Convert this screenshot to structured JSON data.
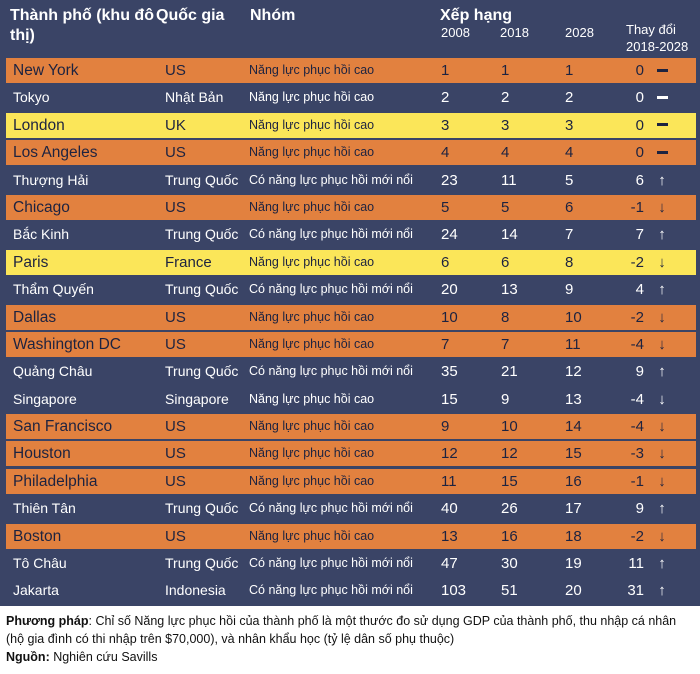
{
  "header": {
    "city": "Thành phố (khu đô thị)",
    "country": "Quốc gia",
    "group": "Nhóm",
    "rank": "Xếp hạng",
    "year1": "2008",
    "year2": "2018",
    "year3": "2028",
    "change_line1": "Thay đổi",
    "change_line2": "2018-2028"
  },
  "rows": [
    {
      "city": "New York",
      "country": "US",
      "group": "Năng lực phục hồi cao",
      "y2008": "1",
      "y2018": "1",
      "y2028": "1",
      "change": "0",
      "trend": "flat",
      "color": "orange"
    },
    {
      "city": "Tokyo",
      "country": "Nhật Bản",
      "group": "Năng lực phục hồi cao",
      "y2008": "2",
      "y2018": "2",
      "y2028": "2",
      "change": "0",
      "trend": "flat",
      "color": "navy"
    },
    {
      "city": "London",
      "country": "UK",
      "group": "Năng lực phục hồi cao",
      "y2008": "3",
      "y2018": "3",
      "y2028": "3",
      "change": "0",
      "trend": "flat",
      "color": "yellow"
    },
    {
      "city": "Los Angeles",
      "country": "US",
      "group": "Năng lực phục hồi cao",
      "y2008": "4",
      "y2018": "4",
      "y2028": "4",
      "change": "0",
      "trend": "flat",
      "color": "orange"
    },
    {
      "city": "Thượng Hải",
      "country": "Trung Quốc",
      "group": "Có năng lực phục hồi mới nổi",
      "y2008": "23",
      "y2018": "11",
      "y2028": "5",
      "change": "6",
      "trend": "up",
      "color": "navy"
    },
    {
      "city": "Chicago",
      "country": "US",
      "group": "Năng lực phục hồi cao",
      "y2008": "5",
      "y2018": "5",
      "y2028": "6",
      "change": "-1",
      "trend": "down",
      "color": "orange"
    },
    {
      "city": "Bắc Kinh",
      "country": "Trung Quốc",
      "group": "Có năng lực phục hồi mới nổi",
      "y2008": "24",
      "y2018": "14",
      "y2028": "7",
      "change": "7",
      "trend": "up",
      "color": "navy"
    },
    {
      "city": "Paris",
      "country": "France",
      "group": "Năng lực phục hồi cao",
      "y2008": "6",
      "y2018": "6",
      "y2028": "8",
      "change": "-2",
      "trend": "down",
      "color": "yellow"
    },
    {
      "city": "Thẩm Quyến",
      "country": "Trung Quốc",
      "group": "Có năng lực phục hồi mới nổi",
      "y2008": "20",
      "y2018": "13",
      "y2028": "9",
      "change": "4",
      "trend": "up",
      "color": "navy"
    },
    {
      "city": "Dallas",
      "country": "US",
      "group": "Năng lực phục hồi cao",
      "y2008": "10",
      "y2018": "8",
      "y2028": "10",
      "change": "-2",
      "trend": "down",
      "color": "orange"
    },
    {
      "city": "Washington DC",
      "country": "US",
      "group": "Năng lực phục hồi cao",
      "y2008": "7",
      "y2018": "7",
      "y2028": "11",
      "change": "-4",
      "trend": "down",
      "color": "orange"
    },
    {
      "city": "Quảng Châu",
      "country": "Trung Quốc",
      "group": "Có năng lực phục hồi mới nổi",
      "y2008": "35",
      "y2018": "21",
      "y2028": "12",
      "change": "9",
      "trend": "up",
      "color": "navy"
    },
    {
      "city": "Singapore",
      "country": "Singapore",
      "group": "Năng lực phục hồi cao",
      "y2008": "15",
      "y2018": "9",
      "y2028": "13",
      "change": "-4",
      "trend": "down",
      "color": "navy"
    },
    {
      "city": "San Francisco",
      "country": "US",
      "group": "Năng lực phục hồi cao",
      "y2008": "9",
      "y2018": "10",
      "y2028": "14",
      "change": "-4",
      "trend": "down",
      "color": "orange"
    },
    {
      "city": "Houston",
      "country": "US",
      "group": "Năng lực phục hồi cao",
      "y2008": "12",
      "y2018": "12",
      "y2028": "15",
      "change": "-3",
      "trend": "down",
      "color": "orange"
    },
    {
      "city": "Philadelphia",
      "country": "US",
      "group": "Năng lực phục hồi cao",
      "y2008": "11",
      "y2018": "15",
      "y2028": "16",
      "change": "-1",
      "trend": "down",
      "color": "orange"
    },
    {
      "city": "Thiên Tân",
      "country": "Trung Quốc",
      "group": "Có năng lực phục hồi mới nổi",
      "y2008": "40",
      "y2018": "26",
      "y2028": "17",
      "change": "9",
      "trend": "up",
      "color": "navy"
    },
    {
      "city": "Boston",
      "country": "US",
      "group": "Năng lực phục hồi cao",
      "y2008": "13",
      "y2018": "16",
      "y2028": "18",
      "change": "-2",
      "trend": "down",
      "color": "orange"
    },
    {
      "city": "Tô Châu",
      "country": "Trung Quốc",
      "group": "Có năng lực phục hồi mới nổi",
      "y2008": "47",
      "y2018": "30",
      "y2028": "19",
      "change": "11",
      "trend": "up",
      "color": "navy"
    },
    {
      "city": "Jakarta",
      "country": "Indonesia",
      "group": "Có năng lực phục hồi mới nổi",
      "y2008": "103",
      "y2018": "51",
      "y2028": "20",
      "change": "31",
      "trend": "up",
      "color": "navy"
    }
  ],
  "footnote": {
    "method_label": "Phương pháp",
    "method_text": ": Chỉ số Năng lực phục hồi của thành phố là một thước đo sử dụng GDP của thành phố, thu nhập cá nhân (hộ gia đình có thi nhập trên $70,000), và nhân khẩu học (tỷ lệ dân số phụ thuộc)",
    "source_label": "Nguồn:",
    "source_text": " Nghiên cứu Savills"
  },
  "colors": {
    "orange": "#e2813f",
    "navy": "#3a4466",
    "yellow": "#fbe659"
  }
}
